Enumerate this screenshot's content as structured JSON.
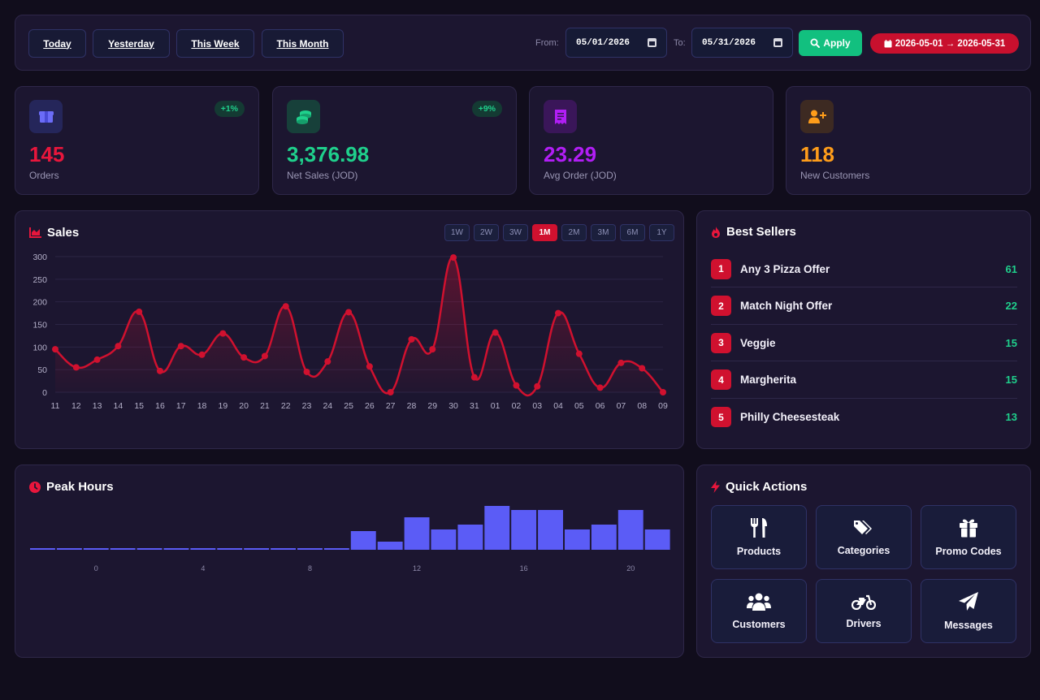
{
  "toolbar": {
    "quick_ranges": [
      "Today",
      "Yesterday",
      "This Week",
      "This Month"
    ],
    "from_label": "From:",
    "from_value": "05/01/2026",
    "to_label": "To:",
    "to_value": "05/31/2026",
    "apply_label": "Apply",
    "range_badge": "2026-05-01 → 2026-05-31",
    "colors": {
      "apply": "#12c07f",
      "range_badge": "#c8102e"
    }
  },
  "stats": [
    {
      "value": "145",
      "label": "Orders",
      "badge": "+1%",
      "icon": "box-icon",
      "color": "#e8163c"
    },
    {
      "value": "3,376.98",
      "label": "Net Sales (JOD)",
      "badge": "+9%",
      "icon": "coins-icon",
      "color": "#1fd08c"
    },
    {
      "value": "23.29",
      "label": "Avg Order (JOD)",
      "icon": "receipt-icon",
      "color": "#b11ef5"
    },
    {
      "value": "118",
      "label": "New Customers",
      "icon": "user-plus-icon",
      "color": "#ff9d1a"
    }
  ],
  "sales": {
    "title": "Sales",
    "icon": "area-chart-icon",
    "ranges": [
      "1W",
      "2W",
      "3W",
      "1M",
      "2M",
      "3M",
      "6M",
      "1Y"
    ],
    "active_range": "1M"
  },
  "best_sellers": {
    "title": "Best Sellers",
    "icon": "fire-icon",
    "items": [
      {
        "rank": "1",
        "name": "Any 3 Pizza Offer",
        "count": "61"
      },
      {
        "rank": "2",
        "name": "Match Night Offer",
        "count": "22"
      },
      {
        "rank": "3",
        "name": "Veggie",
        "count": "15"
      },
      {
        "rank": "4",
        "name": "Margherita",
        "count": "15"
      },
      {
        "rank": "5",
        "name": "Philly Cheesesteak",
        "count": "13"
      }
    ]
  },
  "peak_hours": {
    "title": "Peak Hours",
    "icon": "clock-icon"
  },
  "quick_actions": {
    "title": "Quick Actions",
    "icon": "bolt-icon",
    "items": [
      {
        "label": "Products",
        "icon": "utensils-icon"
      },
      {
        "label": "Categories",
        "icon": "tags-icon"
      },
      {
        "label": "Promo Codes",
        "icon": "gift-icon"
      },
      {
        "label": "Customers",
        "icon": "users-icon"
      },
      {
        "label": "Drivers",
        "icon": "motorcycle-icon"
      },
      {
        "label": "Messages",
        "icon": "paper-plane-icon"
      }
    ]
  },
  "chart_data": [
    {
      "type": "line",
      "ylim": [
        0,
        300
      ],
      "y_ticks": [
        0,
        50,
        100,
        150,
        200,
        250,
        300
      ],
      "grid": true,
      "color": "#d0112f",
      "x": [
        "11",
        "12",
        "13",
        "14",
        "15",
        "16",
        "17",
        "18",
        "19",
        "20",
        "21",
        "22",
        "23",
        "24",
        "25",
        "26",
        "27",
        "28",
        "29",
        "30",
        "31",
        "01",
        "02",
        "03",
        "04",
        "05",
        "06",
        "07",
        "08",
        "09"
      ],
      "values": [
        95,
        55,
        72,
        102,
        178,
        47,
        102,
        83,
        130,
        77,
        80,
        190,
        45,
        68,
        177,
        57,
        0,
        117,
        95,
        298,
        33,
        132,
        15,
        13,
        175,
        85,
        10,
        65,
        53,
        0
      ]
    },
    {
      "type": "bar",
      "x_ticks": [
        "0",
        "4",
        "8",
        "12",
        "16",
        "20"
      ],
      "categories": [
        "22",
        "23",
        "0",
        "1",
        "2",
        "3",
        "4",
        "5",
        "6",
        "7",
        "8",
        "9",
        "10",
        "11",
        "12",
        "13",
        "14",
        "15",
        "16",
        "17",
        "18",
        "19",
        "20",
        "21"
      ],
      "values": [
        0.5,
        0.5,
        0.5,
        0.5,
        0.5,
        0.5,
        0.5,
        0.5,
        0.5,
        0.5,
        0.5,
        0.5,
        11.5,
        5,
        20,
        12.5,
        15.5,
        27,
        24.5,
        24.5,
        12.5,
        15.5,
        24.5,
        12.5
      ],
      "color": "#5b5cf6"
    }
  ]
}
